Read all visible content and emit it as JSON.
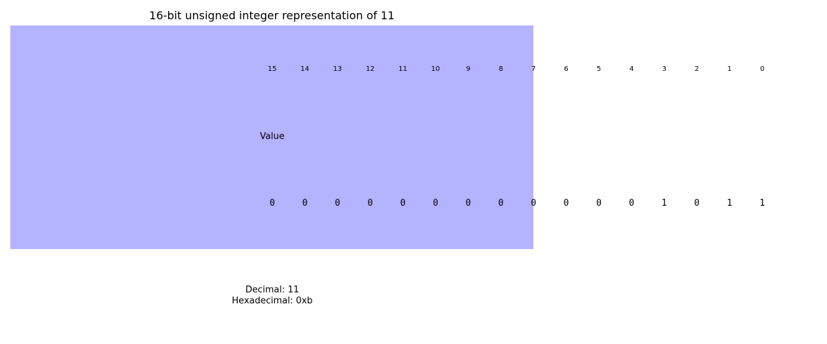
{
  "title": "16-bit unsigned integer representation of 11",
  "row_label": "Value",
  "bit_positions": [
    "15",
    "14",
    "13",
    "12",
    "11",
    "10",
    "9",
    "8",
    "7",
    "6",
    "5",
    "4",
    "3",
    "2",
    "1",
    "0"
  ],
  "bit_values": [
    "0",
    "0",
    "0",
    "0",
    "0",
    "0",
    "0",
    "0",
    "0",
    "0",
    "0",
    "0",
    "1",
    "0",
    "1",
    "1"
  ],
  "highlight_color": "#b3b3ff",
  "highlight_end_bit": "7",
  "decimal_label": "Decimal: 11",
  "hex_label": "Hexadecimal: 0xb"
}
